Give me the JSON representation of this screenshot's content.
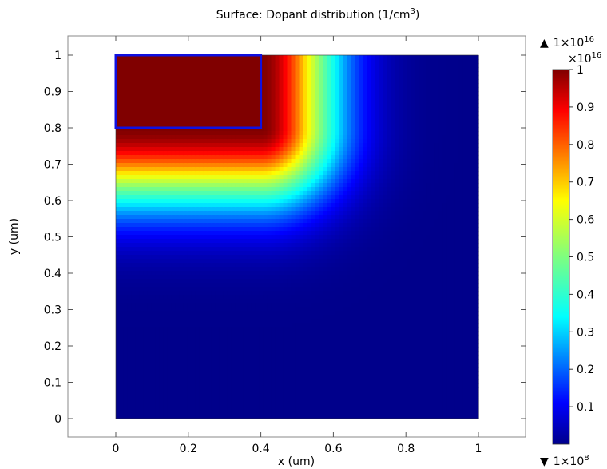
{
  "chart_data": {
    "type": "heatmap",
    "title_prefix": "Surface: Dopant distribution (1/cm",
    "title_exp": "3",
    "title_suffix": ")",
    "xlabel": "x (um)",
    "ylabel": "y (um)",
    "x_ticks": [
      "0",
      "0.2",
      "0.4",
      "0.6",
      "0.8",
      "1"
    ],
    "y_ticks": [
      "0",
      "0.1",
      "0.2",
      "0.3",
      "0.4",
      "0.5",
      "0.6",
      "0.7",
      "0.8",
      "0.9",
      "1"
    ],
    "xlim": [
      -0.13,
      1.13
    ],
    "ylim": [
      -0.05,
      1.05
    ],
    "domain": {
      "x": [
        0,
        1
      ],
      "y": [
        0,
        1
      ]
    },
    "source_region": {
      "x": [
        0,
        0.4
      ],
      "y": [
        0.8,
        1.0
      ]
    },
    "source_outline_color": "#1010e0",
    "colorbar": {
      "colormap": "jet",
      "range": [
        0,
        1
      ],
      "multiplier_base": "×10",
      "multiplier_exp": "16",
      "max_marker_base": "1×10",
      "max_marker_exp": "16",
      "min_marker_base": "1×10",
      "min_marker_exp": "8",
      "max_arrow": "▲",
      "min_arrow": "▼",
      "ticks": [
        "0.1",
        "0.2",
        "0.3",
        "0.4",
        "0.5",
        "0.6",
        "0.7",
        "0.8",
        "0.9",
        "1"
      ]
    }
  }
}
